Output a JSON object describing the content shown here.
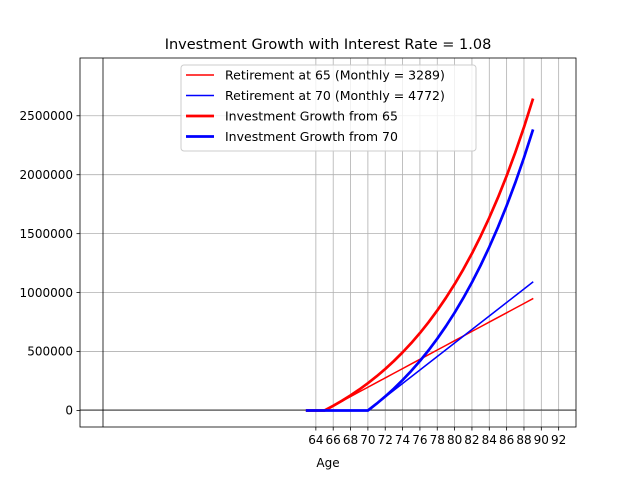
{
  "chart_data": {
    "type": "line",
    "title": "Investment Growth with Interest Rate = 1.08",
    "xlabel": "Age",
    "ylabel": "",
    "xlim": [
      36.8,
      94.0
    ],
    "ylim": [
      -140000,
      2990000
    ],
    "grid": true,
    "legend_position": "top-right",
    "x_ticks": [
      64,
      66,
      68,
      70,
      72,
      74,
      76,
      78,
      80,
      82,
      84,
      86,
      88,
      90,
      92
    ],
    "y_ticks": [
      0,
      500000,
      1000000,
      1500000,
      2000000,
      2500000
    ],
    "y_tick_labels": [
      "0",
      "500000",
      "1000000",
      "1500000",
      "2000000",
      "2500000"
    ],
    "x_tick_labels": [
      "64",
      "66",
      "68",
      "70",
      "72",
      "74",
      "76",
      "78",
      "80",
      "82",
      "84",
      "86",
      "88",
      "90",
      "92"
    ],
    "series": [
      {
        "name": "Retirement at 65 (Monthly = 3289)",
        "color": "#ff0000",
        "linewidth": "thin",
        "x": [
          63,
          64,
          65,
          66,
          67,
          68,
          69,
          70,
          71,
          72,
          73,
          74,
          75,
          76,
          77,
          78,
          79,
          80,
          81,
          82,
          83,
          84,
          85,
          86,
          87,
          88,
          89
        ],
        "y": [
          0,
          0,
          0,
          39468,
          78936,
          118404,
          157872,
          197340,
          236808,
          276276,
          315744,
          355212,
          394680,
          434148,
          473616,
          513084,
          552552,
          592020,
          631488,
          670956,
          710424,
          749892,
          789360,
          828828,
          868296,
          907764,
          947232
        ]
      },
      {
        "name": "Retirement at 70 (Monthly = 4772)",
        "color": "#0000ff",
        "linewidth": "thin",
        "x": [
          63,
          64,
          65,
          66,
          67,
          68,
          69,
          70,
          71,
          72,
          73,
          74,
          75,
          76,
          77,
          78,
          79,
          80,
          81,
          82,
          83,
          84,
          85,
          86,
          87,
          88,
          89
        ],
        "y": [
          0,
          0,
          0,
          0,
          0,
          0,
          0,
          0,
          57264,
          114528,
          171792,
          229056,
          286320,
          343584,
          400848,
          458112,
          515376,
          572640,
          629904,
          687168,
          744432,
          801696,
          858960,
          916224,
          973488,
          1030752,
          1088016
        ]
      },
      {
        "name": "Investment Growth from 65",
        "color": "#ff0000",
        "linewidth": "thick",
        "x": [
          63,
          64,
          65,
          66,
          67,
          68,
          69,
          70,
          71,
          72,
          73,
          74,
          75,
          76,
          77,
          78,
          79,
          80,
          81,
          82,
          83,
          84,
          85,
          86,
          87,
          88,
          89
        ],
        "y": [
          0,
          0,
          0,
          39468,
          82094,
          128130,
          177850,
          231547,
          289539,
          352170,
          419812,
          492865,
          571762,
          656971,
          749000,
          848388,
          955726,
          1071652,
          1196852,
          1332068,
          1478102,
          1635818,
          1806151,
          1990111,
          2188787,
          2403358,
          2635095
        ]
      },
      {
        "name": "Investment Growth from 70",
        "color": "#0000ff",
        "linewidth": "thick",
        "x": [
          63,
          64,
          65,
          66,
          67,
          68,
          69,
          70,
          71,
          72,
          73,
          74,
          75,
          76,
          77,
          78,
          79,
          80,
          81,
          82,
          83,
          84,
          85,
          86,
          87,
          88,
          89
        ],
        "y": [
          0,
          0,
          0,
          0,
          0,
          0,
          0,
          0,
          57264,
          119109,
          185902,
          258038,
          335945,
          420084,
          510955,
          609095,
          715086,
          829556,
          953184,
          1086703,
          1230903,
          1386640,
          1554835,
          1736486,
          1932669,
          2144547,
          2373375
        ]
      }
    ]
  }
}
